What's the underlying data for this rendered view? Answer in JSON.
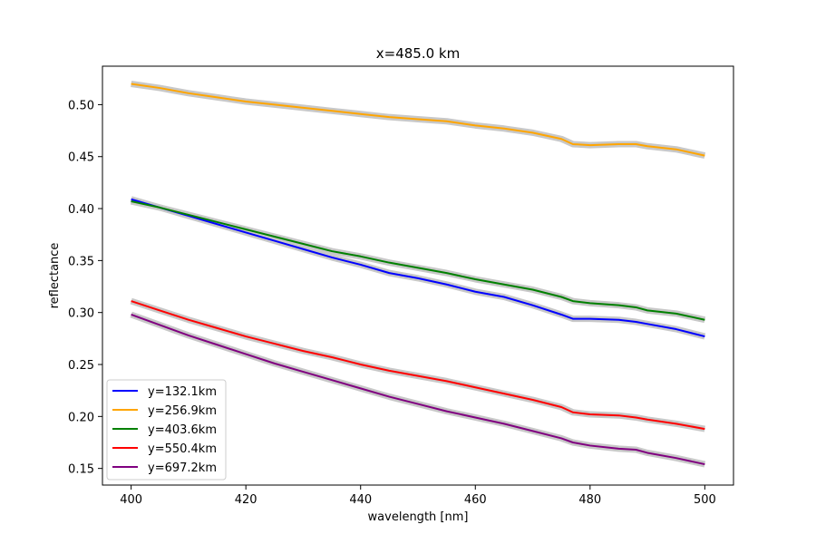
{
  "chart_data": {
    "type": "line",
    "title": "x=485.0 km",
    "xlabel": "wavelength [nm]",
    "ylabel": "reflectance",
    "xlim": [
      395,
      505
    ],
    "ylim": [
      0.134,
      0.537
    ],
    "xticks": [
      400,
      420,
      440,
      460,
      480,
      500
    ],
    "xtick_labels": [
      "400",
      "420",
      "440",
      "460",
      "480",
      "500"
    ],
    "yticks": [
      0.15,
      0.2,
      0.25,
      0.3,
      0.35,
      0.4,
      0.45,
      0.5
    ],
    "ytick_labels": [
      "0.15",
      "0.20",
      "0.25",
      "0.30",
      "0.35",
      "0.40",
      "0.45",
      "0.50"
    ],
    "grid": false,
    "legend_position": "lower-left",
    "uncertainty_band_color": "#c8c8c8",
    "x": [
      400,
      405,
      410,
      415,
      420,
      425,
      430,
      435,
      440,
      445,
      450,
      455,
      460,
      465,
      470,
      475,
      477,
      480,
      485,
      488,
      490,
      495,
      500
    ],
    "series": [
      {
        "name": "y=132.1km",
        "color": "#0000ff",
        "values": [
          0.409,
          0.401,
          0.393,
          0.385,
          0.377,
          0.369,
          0.361,
          0.353,
          0.346,
          0.338,
          0.333,
          0.327,
          0.32,
          0.315,
          0.307,
          0.298,
          0.294,
          0.294,
          0.293,
          0.291,
          0.289,
          0.284,
          0.277
        ]
      },
      {
        "name": "y=256.9km",
        "color": "#ffa500",
        "values": [
          0.52,
          0.516,
          0.511,
          0.507,
          0.503,
          0.5,
          0.497,
          0.494,
          0.491,
          0.488,
          0.486,
          0.484,
          0.48,
          0.477,
          0.473,
          0.467,
          0.462,
          0.461,
          0.462,
          0.462,
          0.46,
          0.457,
          0.451
        ]
      },
      {
        "name": "y=403.6km",
        "color": "#008000",
        "values": [
          0.407,
          0.401,
          0.394,
          0.387,
          0.38,
          0.373,
          0.366,
          0.359,
          0.354,
          0.348,
          0.343,
          0.338,
          0.332,
          0.327,
          0.322,
          0.315,
          0.311,
          0.309,
          0.307,
          0.305,
          0.302,
          0.299,
          0.293
        ]
      },
      {
        "name": "y=550.4km",
        "color": "#ff0000",
        "values": [
          0.311,
          0.302,
          0.293,
          0.285,
          0.277,
          0.27,
          0.263,
          0.257,
          0.25,
          0.244,
          0.239,
          0.234,
          0.228,
          0.222,
          0.216,
          0.209,
          0.204,
          0.202,
          0.201,
          0.199,
          0.197,
          0.193,
          0.188
        ]
      },
      {
        "name": "y=697.2km",
        "color": "#800080",
        "values": [
          0.298,
          0.288,
          0.278,
          0.269,
          0.26,
          0.251,
          0.243,
          0.235,
          0.227,
          0.219,
          0.212,
          0.205,
          0.199,
          0.193,
          0.186,
          0.179,
          0.175,
          0.172,
          0.169,
          0.168,
          0.165,
          0.16,
          0.154
        ]
      }
    ]
  }
}
